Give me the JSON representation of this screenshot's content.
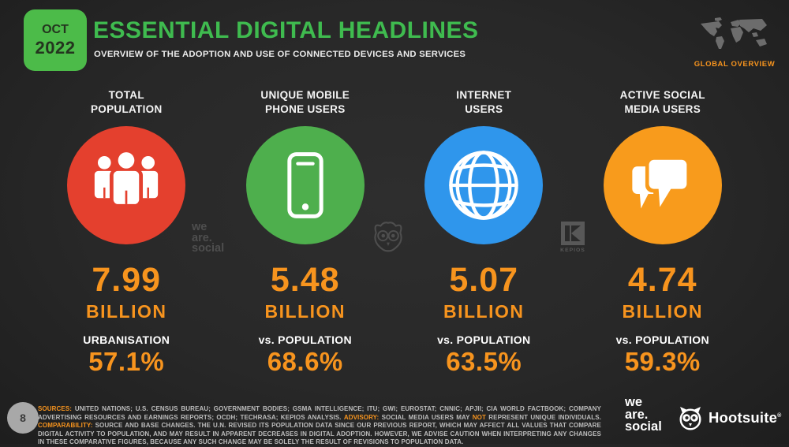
{
  "header": {
    "date_line1": "OCT",
    "date_line2": "2022",
    "title": "ESSENTIAL DIGITAL HEADLINES",
    "subtitle": "OVERVIEW OF THE ADOPTION AND USE OF CONNECTED DEVICES AND SERVICES",
    "overview_label": "GLOBAL OVERVIEW"
  },
  "colors": {
    "background": "#282828",
    "brand_green": "#4cbb49",
    "title_green": "#3fbb4f",
    "stat_orange": "#f7941e",
    "circle_red": "#e4402e",
    "circle_green": "#4eaf4d",
    "circle_blue": "#2f96ec",
    "circle_orange": "#f89b1c"
  },
  "stats": [
    {
      "label_line1": "TOTAL",
      "label_line2": "POPULATION",
      "icon": "people-icon",
      "circle_color": "#e4402e",
      "value": "7.99",
      "unit": "BILLION",
      "sub_label": "URBANISATION",
      "sub_value": "57.1%"
    },
    {
      "label_line1": "UNIQUE MOBILE",
      "label_line2": "PHONE USERS",
      "icon": "mobile-phone-icon",
      "circle_color": "#4eaf4d",
      "value": "5.48",
      "unit": "BILLION",
      "sub_label": "vs. POPULATION",
      "sub_value": "68.6%"
    },
    {
      "label_line1": "INTERNET",
      "label_line2": "USERS",
      "icon": "globe-icon",
      "circle_color": "#2f96ec",
      "value": "5.07",
      "unit": "BILLION",
      "sub_label": "vs. POPULATION",
      "sub_value": "63.5%"
    },
    {
      "label_line1": "ACTIVE SOCIAL",
      "label_line2": "MEDIA USERS",
      "icon": "chat-bubbles-icon",
      "circle_color": "#f89b1c",
      "value": "4.74",
      "unit": "BILLION",
      "sub_label": "vs. POPULATION",
      "sub_value": "59.3%"
    }
  ],
  "watermarks": {
    "we_are_social": [
      "we",
      "are.",
      "social"
    ],
    "kepios_label": "KEPIOS"
  },
  "footer": {
    "page_number": "8",
    "segments": [
      {
        "text": "SOURCES:",
        "highlight": true
      },
      {
        "text": " UNITED NATIONS; U.S. CENSUS BUREAU; GOVERNMENT BODIES; GSMA INTELLIGENCE; ITU; GWI; EUROSTAT; CNNIC; APJII; CIA WORLD FACTBOOK; COMPANY ADVERTISING RESOURCES AND EARNINGS REPORTS; OCDH; TECHRASA; KEPIOS ANALYSIS. ",
        "highlight": false
      },
      {
        "text": "ADVISORY:",
        "highlight": true
      },
      {
        "text": " SOCIAL MEDIA USERS MAY ",
        "highlight": false
      },
      {
        "text": "NOT",
        "highlight": true
      },
      {
        "text": " REPRESENT UNIQUE INDIVIDUALS. ",
        "highlight": false
      },
      {
        "text": "COMPARABILITY:",
        "highlight": true
      },
      {
        "text": " SOURCE AND BASE CHANGES. THE U.N. REVISED ITS POPULATION DATA SINCE OUR PREVIOUS REPORT, WHICH MAY AFFECT ALL VALUES THAT COMPARE DIGITAL ACTIVITY TO POPULATION, AND MAY RESULT IN APPARENT DECREASES IN DIGITAL ADOPTION. HOWEVER, WE ADVISE CAUTION WHEN INTERPRETING ANY CHANGES IN THESE COMPARATIVE FIGURES, BECAUSE ANY SUCH CHANGE MAY BE SOLELY THE RESULT OF REVISIONS TO POPULATION DATA.",
        "highlight": false
      }
    ]
  },
  "logos": {
    "we_are_social": [
      "we",
      "are.",
      "social"
    ],
    "hootsuite": "Hootsuite",
    "hootsuite_reg": "®"
  }
}
